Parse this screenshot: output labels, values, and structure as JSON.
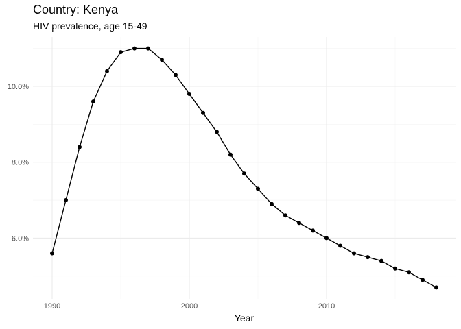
{
  "chart_data": {
    "type": "line",
    "title": "Country: Kenya",
    "subtitle": "HIV prevalence, age 15-49",
    "xlabel": "Year",
    "ylabel": "",
    "x": [
      1990,
      1991,
      1992,
      1993,
      1994,
      1995,
      1996,
      1997,
      1998,
      1999,
      2000,
      2001,
      2002,
      2003,
      2004,
      2005,
      2006,
      2007,
      2008,
      2009,
      2010,
      2011,
      2012,
      2013,
      2014,
      2015,
      2016,
      2017,
      2018
    ],
    "series": [
      {
        "values": [
          5.6,
          7.0,
          8.4,
          9.6,
          10.4,
          10.9,
          11.0,
          11.0,
          10.7,
          10.3,
          9.8,
          9.3,
          8.8,
          8.2,
          7.7,
          7.3,
          6.9,
          6.6,
          6.4,
          6.2,
          6.0,
          5.8,
          5.6,
          5.5,
          5.4,
          5.2,
          5.1,
          4.9,
          4.7
        ]
      }
    ],
    "xlim": [
      1988.6,
      2019.4
    ],
    "ylim": [
      4.4,
      11.3
    ],
    "x_major_ticks": [
      1990,
      2000,
      2010
    ],
    "x_minor_ticks": [
      1995,
      2005,
      2015
    ],
    "y_major_ticks": [
      6,
      8,
      10
    ],
    "y_minor_ticks": [
      5,
      7,
      9,
      11
    ],
    "y_tick_labels": [
      "6.0%",
      "8.0%",
      "10.0%"
    ],
    "x_tick_labels": [
      "1990",
      "2000",
      "2010"
    ],
    "grid": true,
    "legend": "none",
    "colors": {
      "line": "#000000",
      "point": "#000000",
      "grid_major": "#ebebeb",
      "grid_minor": "#f3f3f3"
    }
  }
}
